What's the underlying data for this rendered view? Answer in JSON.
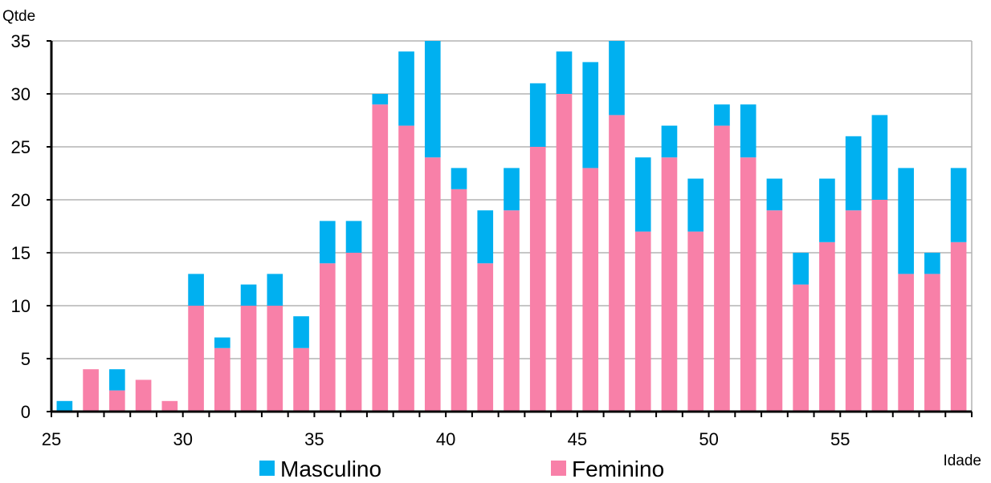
{
  "chart_data": {
    "type": "bar",
    "stacked": true,
    "ylabel": "Qtde",
    "xlabel": "Idade",
    "ylim": [
      0,
      35
    ],
    "yticks": [
      0,
      5,
      10,
      15,
      20,
      25,
      30,
      35
    ],
    "x": [
      25,
      26,
      27,
      28,
      29,
      30,
      31,
      32,
      33,
      34,
      35,
      36,
      37,
      38,
      39,
      40,
      41,
      42,
      43,
      44,
      45,
      46,
      47,
      48,
      49,
      50,
      51,
      52,
      53,
      54,
      55,
      56,
      57,
      58,
      59
    ],
    "xtick_labels": [
      "25",
      "30",
      "35",
      "40",
      "45",
      "50",
      "55"
    ],
    "grid": true,
    "legend_position": "bottom",
    "series": [
      {
        "name": "Feminino",
        "color": "#f880a8",
        "values": [
          0,
          4,
          2,
          3,
          1,
          10,
          6,
          10,
          10,
          6,
          14,
          15,
          29,
          27,
          24,
          21,
          14,
          19,
          25,
          30,
          23,
          28,
          17,
          24,
          17,
          27,
          24,
          19,
          12,
          16,
          19,
          20,
          13,
          13,
          16
        ]
      },
      {
        "name": "Masculino",
        "color": "#00b0f0",
        "values": [
          1,
          0,
          2,
          0,
          0,
          3,
          1,
          2,
          3,
          3,
          4,
          3,
          1,
          7,
          11,
          2,
          5,
          4,
          6,
          4,
          10,
          7,
          7,
          3,
          5,
          2,
          5,
          3,
          3,
          6,
          7,
          8,
          10,
          2,
          7
        ]
      }
    ],
    "legend_order": [
      "Masculino",
      "Feminino"
    ]
  }
}
